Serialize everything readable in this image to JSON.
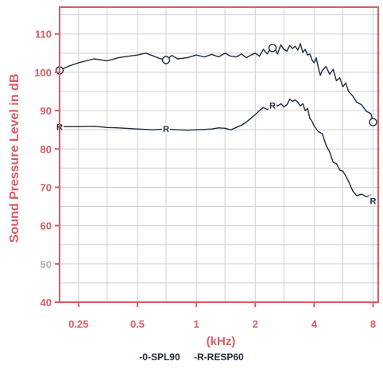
{
  "chart_data": {
    "type": "line",
    "xlabel": "(kHz)",
    "ylabel": "Sound Pressure Level in dB",
    "xscale": "log",
    "xlim": [
      0.2,
      8.5
    ],
    "ylim": [
      40,
      117
    ],
    "grid": true,
    "legend_position": "bottom",
    "x_ticks": [
      {
        "value": 0.25,
        "label": "0.25"
      },
      {
        "value": 0.5,
        "label": "0.5"
      },
      {
        "value": 1,
        "label": "1"
      },
      {
        "value": 2,
        "label": "2"
      },
      {
        "value": 4,
        "label": "4"
      },
      {
        "value": 8,
        "label": "8"
      }
    ],
    "y_ticks": [
      {
        "value": 40,
        "label": "40"
      },
      {
        "value": 50,
        "label": "50"
      },
      {
        "value": 60,
        "label": "60"
      },
      {
        "value": 70,
        "label": "70"
      },
      {
        "value": 80,
        "label": "80"
      },
      {
        "value": 90,
        "label": "90"
      },
      {
        "value": 100,
        "label": "100"
      },
      {
        "value": 110,
        "label": "110"
      }
    ],
    "series": [
      {
        "name": "SPL90",
        "legend_label": "-0-SPL90",
        "marker": "O",
        "color": "#1e2b3c",
        "x": [
          0.2,
          0.22,
          0.25,
          0.3,
          0.35,
          0.4,
          0.45,
          0.5,
          0.55,
          0.6,
          0.65,
          0.7,
          0.75,
          0.8,
          0.9,
          1.0,
          1.1,
          1.2,
          1.3,
          1.4,
          1.5,
          1.6,
          1.7,
          1.8,
          1.9,
          2.0,
          2.1,
          2.2,
          2.3,
          2.4,
          2.5,
          2.6,
          2.7,
          2.8,
          2.9,
          3.0,
          3.1,
          3.2,
          3.3,
          3.4,
          3.5,
          3.6,
          3.7,
          3.8,
          3.9,
          4.0,
          4.1,
          4.2,
          4.3,
          4.4,
          4.6,
          4.8,
          5.0,
          5.2,
          5.4,
          5.6,
          5.8,
          6.0,
          6.3,
          6.6,
          7.0,
          7.4,
          7.8,
          8.0
        ],
        "y": [
          100.5,
          101.5,
          102.5,
          103.5,
          103.0,
          103.8,
          104.2,
          104.5,
          105.0,
          104.3,
          103.6,
          103.2,
          104.4,
          103.5,
          103.8,
          104.5,
          104.0,
          104.7,
          104.0,
          105.0,
          104.2,
          104.0,
          104.8,
          103.8,
          104.5,
          105.0,
          104.2,
          106.0,
          104.8,
          106.2,
          106.5,
          104.8,
          107.2,
          106.0,
          105.5,
          107.0,
          106.2,
          106.8,
          105.8,
          107.5,
          105.2,
          106.0,
          104.5,
          104.8,
          103.2,
          102.5,
          103.8,
          101.2,
          99.2,
          100.5,
          101.5,
          99.5,
          100.8,
          97.8,
          98.6,
          96.2,
          97.2,
          95.0,
          93.8,
          92.2,
          91.5,
          89.8,
          89.2,
          87.0
        ],
        "marker_x": [
          0.2,
          0.7,
          2.45,
          8.0
        ]
      },
      {
        "name": "RESP60",
        "legend_label": "-R-RESP60",
        "marker": "R",
        "color": "#1e2b3c",
        "x": [
          0.2,
          0.25,
          0.3,
          0.35,
          0.4,
          0.5,
          0.6,
          0.7,
          0.8,
          0.9,
          1.0,
          1.1,
          1.2,
          1.3,
          1.4,
          1.5,
          1.6,
          1.7,
          1.8,
          1.9,
          2.0,
          2.1,
          2.2,
          2.3,
          2.4,
          2.5,
          2.6,
          2.7,
          2.8,
          2.9,
          3.0,
          3.1,
          3.2,
          3.3,
          3.4,
          3.5,
          3.6,
          3.7,
          3.8,
          3.9,
          4.0,
          4.2,
          4.4,
          4.6,
          4.8,
          5.0,
          5.2,
          5.4,
          5.6,
          5.8,
          6.0,
          6.3,
          6.6,
          7.0,
          7.4,
          7.8,
          8.0
        ],
        "y": [
          85.8,
          85.8,
          85.9,
          85.6,
          85.5,
          85.2,
          85.0,
          85.2,
          85.0,
          84.9,
          85.0,
          85.1,
          85.2,
          85.5,
          85.4,
          85.0,
          85.6,
          86.2,
          87.0,
          88.0,
          89.0,
          90.0,
          90.8,
          90.3,
          90.7,
          92.0,
          91.2,
          91.8,
          91.0,
          91.5,
          93.0,
          92.4,
          92.8,
          92.2,
          91.2,
          91.8,
          90.0,
          90.6,
          88.0,
          87.2,
          86.0,
          84.5,
          84.0,
          81.0,
          79.2,
          76.5,
          76.2,
          74.5,
          74.2,
          73.0,
          71.5,
          69.0,
          67.8,
          68.2,
          67.5,
          68.0,
          66.5
        ],
        "marker_x": [
          0.2,
          0.7,
          2.45,
          8.0
        ]
      }
    ]
  }
}
